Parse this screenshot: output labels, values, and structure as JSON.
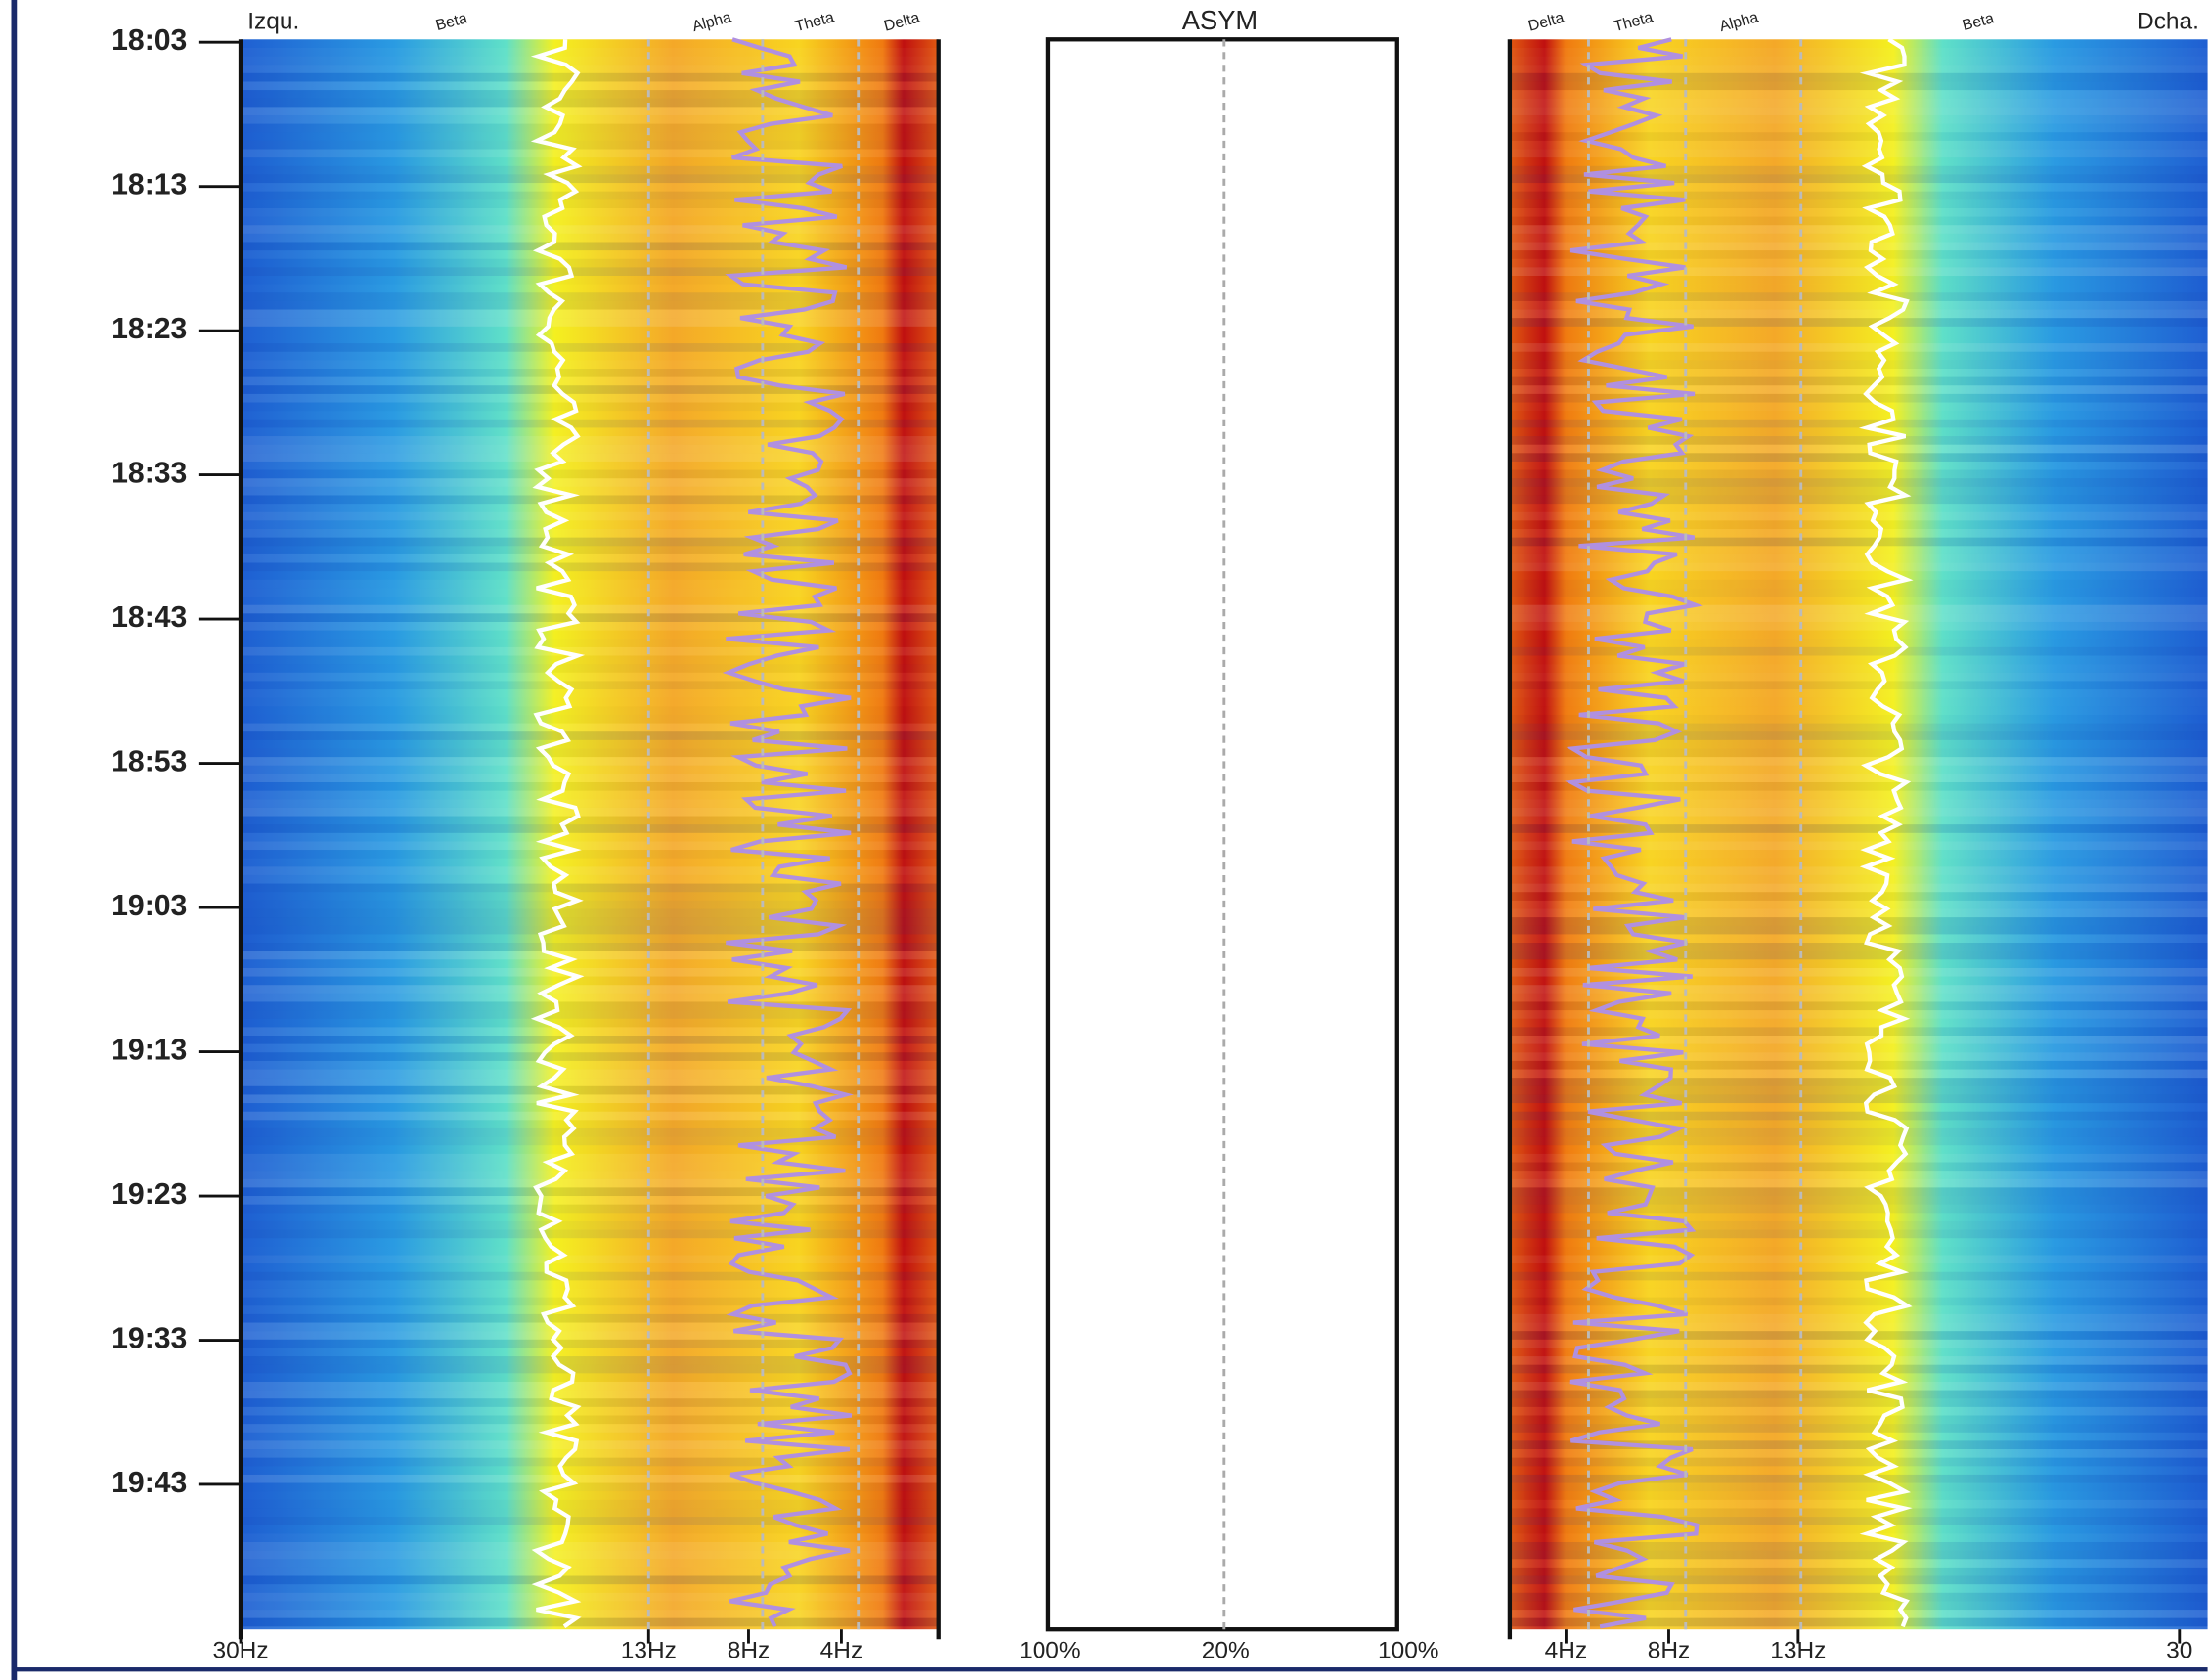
{
  "time_axis": {
    "labels": [
      "18:03",
      "18:13",
      "18:23",
      "18:33",
      "18:43",
      "18:53",
      "19:03",
      "19:13",
      "19:23",
      "19:33",
      "19:43"
    ]
  },
  "left_panel": {
    "label": "Izqu.",
    "bands": [
      "Beta",
      "Alpha",
      "Theta",
      "Delta"
    ],
    "freq_labels": [
      "30Hz",
      "13Hz",
      "8Hz",
      "4Hz"
    ]
  },
  "asym_panel": {
    "title": "ASYM",
    "scale_labels": [
      "100%",
      "20%",
      "100%"
    ]
  },
  "right_panel": {
    "label": "Dcha.",
    "bands": [
      "Delta",
      "Theta",
      "Alpha",
      "Beta"
    ],
    "freq_labels": [
      "4Hz",
      "8Hz",
      "13Hz",
      "30"
    ]
  }
}
